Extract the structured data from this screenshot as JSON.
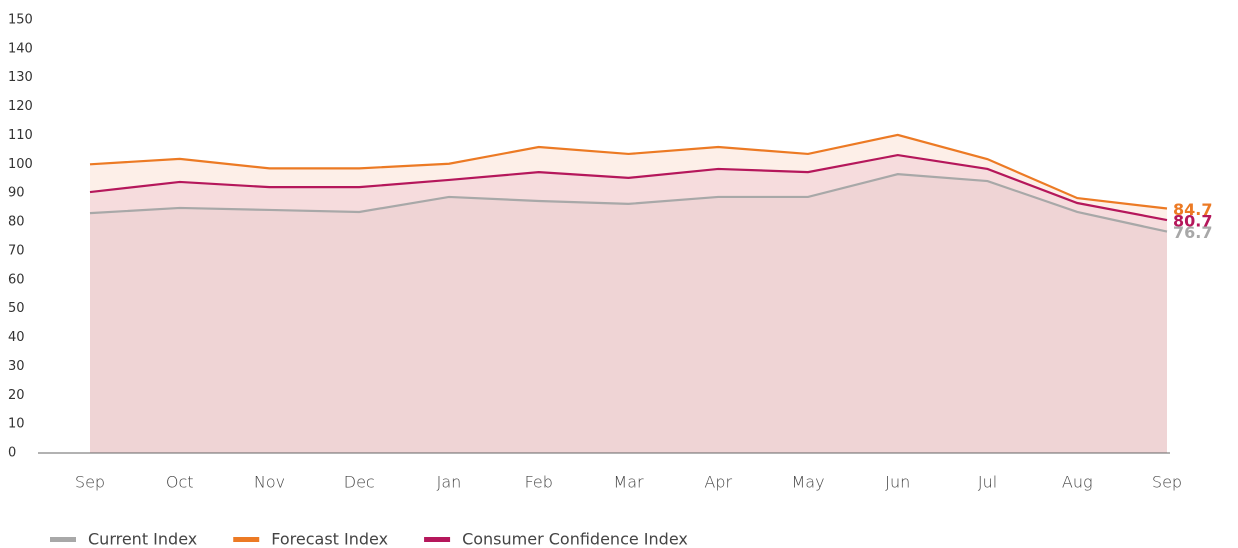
{
  "chart_data": {
    "type": "line",
    "categories": [
      "Sep",
      "Oct",
      "Nov",
      "Dec",
      "Jan",
      "Feb",
      "Mar",
      "Apr",
      "May",
      "Jun",
      "Jul",
      "Aug",
      "Sep"
    ],
    "series": [
      {
        "name": "Current Index",
        "color": "#a8a8a8",
        "fill": "#efd4d5",
        "values": [
          83.1,
          84.9,
          84.2,
          83.5,
          88.7,
          87.3,
          86.3,
          88.7,
          88.7,
          96.6,
          94.2,
          83.5,
          76.7
        ]
      },
      {
        "name": "Forecast Index",
        "color": "#ec7a24",
        "fill": "#fdefe8",
        "values": [
          100,
          101.9,
          98.6,
          98.6,
          100.2,
          106,
          103.6,
          106,
          103.6,
          110.2,
          101.8,
          88.3,
          84.7
        ]
      },
      {
        "name": "Consumer Confidence Index",
        "color": "#b5175b",
        "fill": "#f6dcdd",
        "values": [
          90.4,
          93.9,
          92.1,
          92.1,
          94.6,
          97.3,
          95.3,
          98.4,
          97.3,
          103.2,
          98.4,
          86.6,
          80.7
        ]
      }
    ],
    "ylim": [
      0,
      150
    ],
    "yticks": [
      0,
      10,
      20,
      30,
      40,
      50,
      60,
      70,
      80,
      90,
      100,
      110,
      120,
      130,
      140,
      150
    ],
    "grid": false
  }
}
